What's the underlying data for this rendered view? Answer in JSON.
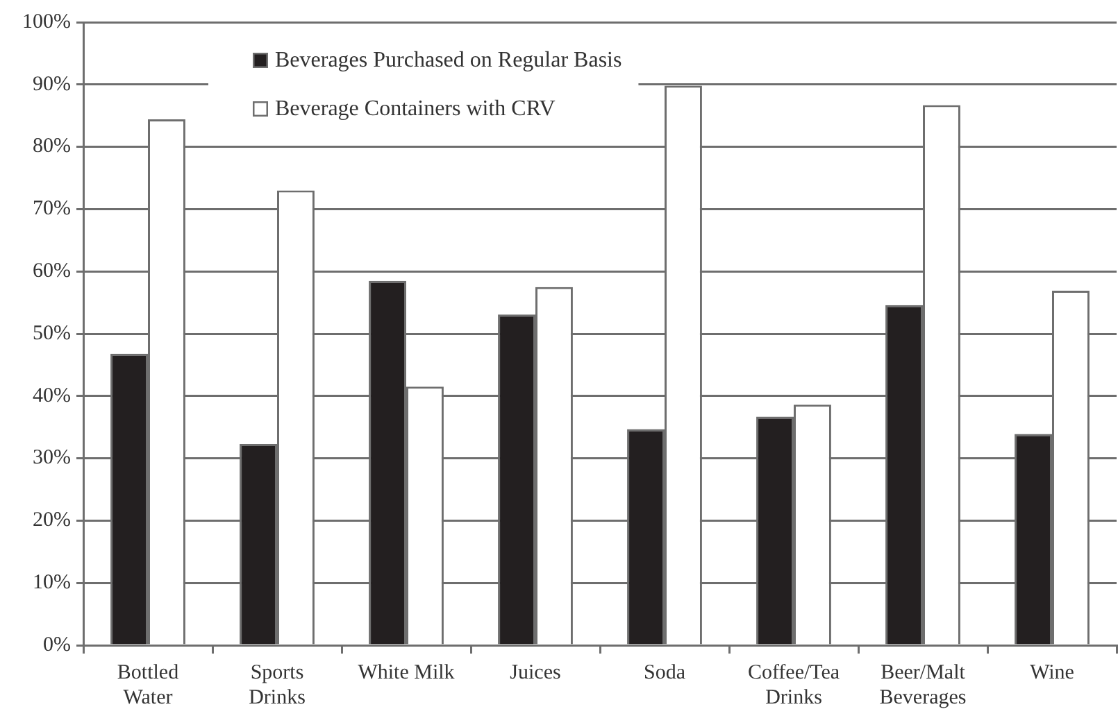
{
  "chart_data": {
    "type": "bar",
    "categories": [
      "Bottled Water",
      "Sports Drinks",
      "White Milk",
      "Juices",
      "Soda",
      "Coffee/Tea Drinks",
      "Beer/Malt Beverages",
      "Wine"
    ],
    "series": [
      {
        "name": "Beverages Purchased on Regular Basis",
        "color": "#231f20",
        "values": [
          46.8,
          32.3,
          58.5,
          53.1,
          34.7,
          36.7,
          54.6,
          33.9
        ]
      },
      {
        "name": "Beverage Containers with CRV",
        "color": "#ffffff",
        "values": [
          84.4,
          73.0,
          41.5,
          57.5,
          89.8,
          38.6,
          86.7,
          56.9
        ]
      }
    ],
    "ylim": [
      0,
      100
    ],
    "yticks": [
      {
        "value": 0,
        "label": "0%"
      },
      {
        "value": 10,
        "label": "10%"
      },
      {
        "value": 20,
        "label": "20%"
      },
      {
        "value": 30,
        "label": "30%"
      },
      {
        "value": 40,
        "label": "40%"
      },
      {
        "value": 50,
        "label": "50%"
      },
      {
        "value": 60,
        "label": "60%"
      },
      {
        "value": 70,
        "label": "70%"
      },
      {
        "value": 80,
        "label": "80%"
      },
      {
        "value": 90,
        "label": "90%"
      },
      {
        "value": 100,
        "label": "100%"
      }
    ],
    "grid": "y",
    "legend": "top left"
  }
}
